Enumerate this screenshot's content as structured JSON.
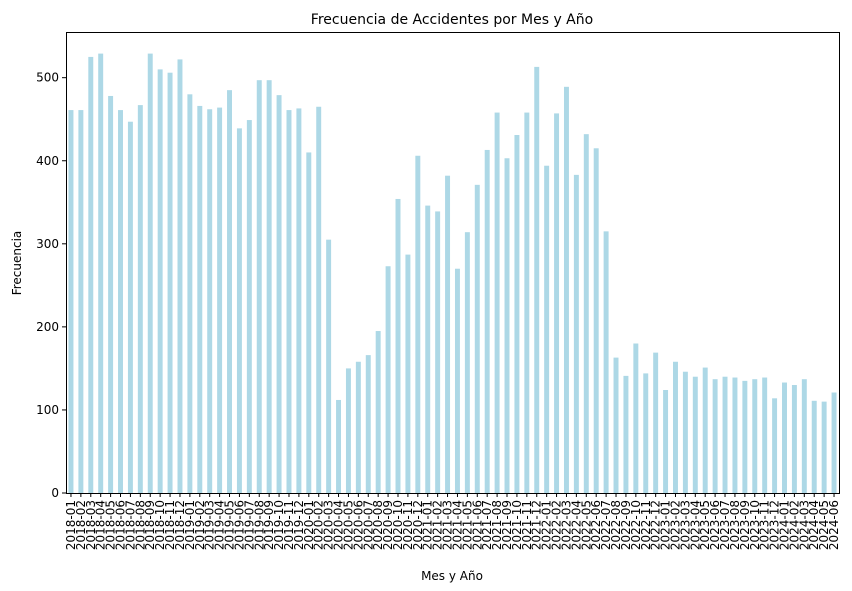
{
  "chart_data": {
    "type": "bar",
    "title": "Frecuencia de Accidentes por Mes y Año",
    "xlabel": "Mes y Año",
    "ylabel": "Frecuencia",
    "ylim": [
      0,
      555
    ],
    "yticks": [
      0,
      100,
      200,
      300,
      400,
      500
    ],
    "grid": false,
    "legend": "none",
    "bar_color": "#add8e6",
    "categories": [
      "2018-01",
      "2018-02",
      "2018-03",
      "2018-04",
      "2018-05",
      "2018-06",
      "2018-07",
      "2018-08",
      "2018-09",
      "2018-10",
      "2018-11",
      "2018-12",
      "2019-01",
      "2019-02",
      "2019-03",
      "2019-04",
      "2019-05",
      "2019-06",
      "2019-07",
      "2019-08",
      "2019-09",
      "2019-10",
      "2019-11",
      "2019-12",
      "2020-01",
      "2020-02",
      "2020-03",
      "2020-04",
      "2020-05",
      "2020-06",
      "2020-07",
      "2020-08",
      "2020-09",
      "2020-10",
      "2020-11",
      "2020-12",
      "2021-01",
      "2021-02",
      "2021-03",
      "2021-04",
      "2021-05",
      "2021-06",
      "2021-07",
      "2021-08",
      "2021-09",
      "2021-10",
      "2021-11",
      "2021-12",
      "2022-01",
      "2022-02",
      "2022-03",
      "2022-04",
      "2022-05",
      "2022-06",
      "2022-07",
      "2022-08",
      "2022-09",
      "2022-10",
      "2022-11",
      "2022-12",
      "2023-01",
      "2023-02",
      "2023-03",
      "2023-04",
      "2023-05",
      "2023-06",
      "2023-07",
      "2023-08",
      "2023-09",
      "2023-10",
      "2023-11",
      "2023-12",
      "2024-01",
      "2024-02",
      "2024-03",
      "2024-04",
      "2024-05",
      "2024-06"
    ],
    "values": [
      461,
      461,
      525,
      529,
      478,
      461,
      447,
      467,
      529,
      510,
      506,
      522,
      480,
      466,
      462,
      464,
      485,
      439,
      449,
      497,
      497,
      479,
      461,
      463,
      410,
      465,
      305,
      112,
      150,
      158,
      166,
      195,
      273,
      354,
      287,
      406,
      346,
      339,
      382,
      270,
      314,
      371,
      413,
      458,
      403,
      431,
      458,
      513,
      394,
      457,
      489,
      383,
      432,
      415,
      315,
      163,
      141,
      180,
      144,
      169,
      124,
      158,
      146,
      140,
      151,
      137,
      140,
      139,
      135,
      137,
      139,
      114,
      133,
      130,
      137,
      111,
      110,
      121
    ]
  }
}
